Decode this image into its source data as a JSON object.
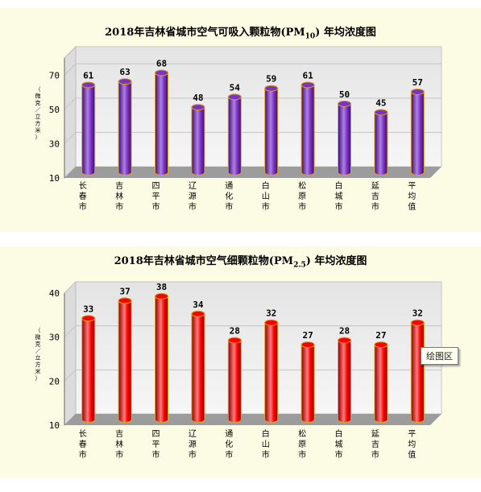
{
  "tooltip": "绘图区",
  "chart_data": [
    {
      "type": "bar",
      "title_main": "2018年吉林省城市空气可吸入颗粒物(PM",
      "title_sub": "10",
      "title_tail": ")  年均浓度图",
      "ylabel": "（微克／立方米）",
      "ylim": [
        10,
        80
      ],
      "yticks": [
        10,
        30,
        50,
        70
      ],
      "categories": [
        "长春市",
        "吉林市",
        "四平市",
        "辽源市",
        "通化市",
        "白山市",
        "松原市",
        "白城市",
        "延吉市",
        "平均值"
      ],
      "values": [
        61,
        63,
        68,
        48,
        54,
        59,
        61,
        50,
        45,
        57
      ],
      "colors": {
        "bar_dark": "#3d0f6e",
        "bar_mid": "#7a33c2",
        "bar_light": "#b07fe6",
        "outline": "#e0a020"
      }
    },
    {
      "type": "bar",
      "title_main": "2018年吉林省城市空气细颗粒物(PM",
      "title_sub": "2.5",
      "title_tail": ")  年均浓度图",
      "ylabel": "（微克／立方米）",
      "ylim": [
        10,
        40
      ],
      "yticks": [
        10,
        20,
        30,
        40
      ],
      "categories": [
        "长春市",
        "吉林市",
        "四平市",
        "辽源市",
        "通化市",
        "白山市",
        "松原市",
        "白城市",
        "延吉市",
        "平均值"
      ],
      "values": [
        33,
        37,
        38,
        34,
        28,
        32,
        27,
        28,
        27,
        32
      ],
      "colors": {
        "bar_dark": "#8a0000",
        "bar_mid": "#ff0000",
        "bar_light": "#ff7a7a",
        "outline": "#e0a020"
      }
    }
  ]
}
